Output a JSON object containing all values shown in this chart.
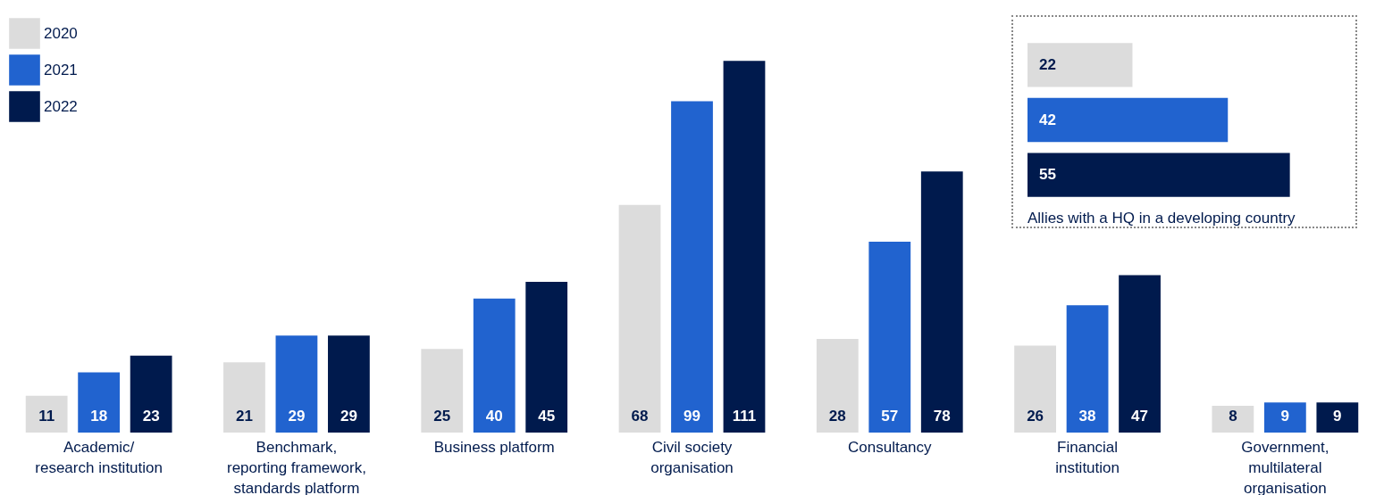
{
  "chart_data": [
    {
      "type": "bar",
      "categories": [
        "Academic/research institution",
        "Benchmark, reporting framework, standards platform",
        "Business platform",
        "Civil society organisation",
        "Consultancy",
        "Financial institution",
        "Government, multilateral organisation"
      ],
      "series": [
        {
          "name": "2020",
          "color": "#dcdcdc",
          "values": [
            11,
            21,
            25,
            68,
            28,
            26,
            8
          ]
        },
        {
          "name": "2021",
          "color": "#2163cf",
          "values": [
            18,
            29,
            40,
            99,
            57,
            38,
            9
          ]
        },
        {
          "name": "2022",
          "color": "#001a4d",
          "values": [
            23,
            29,
            45,
            111,
            78,
            47,
            9
          ]
        }
      ],
      "legend": "top left",
      "data_labels": true
    },
    {
      "type": "bar",
      "orientation": "horizontal",
      "categories": [
        null,
        null,
        null
      ],
      "values": [
        22,
        42,
        55
      ],
      "colors": [
        "#dcdcdc",
        "#2163cf",
        "#001a4d"
      ],
      "data_labels": true,
      "annotations": [
        "Allies with a HQ in a developing country"
      ]
    }
  ]
}
